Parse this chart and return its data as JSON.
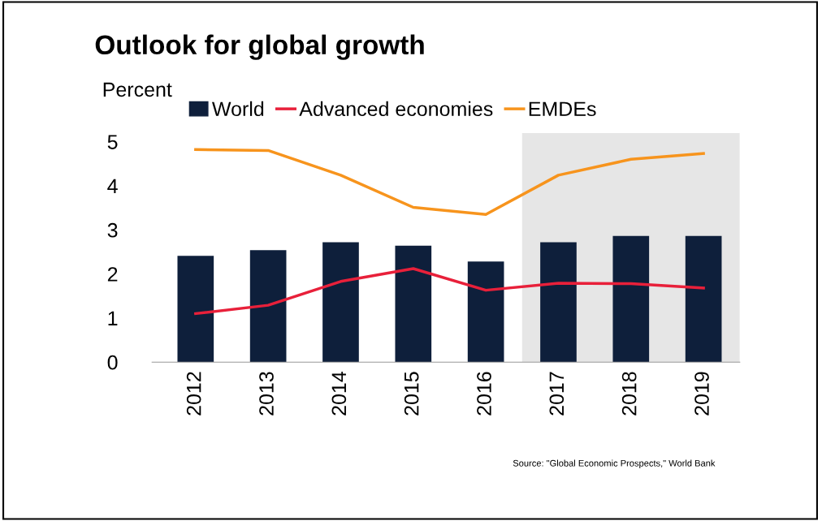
{
  "chart_data": {
    "type": "bar",
    "title": "Outlook for global growth",
    "ylabel": "Percent",
    "categories": [
      "2012",
      "2013",
      "2014",
      "2015",
      "2016",
      "2017",
      "2018",
      "2019"
    ],
    "series": [
      {
        "name": "World",
        "color": "#0e1f3b",
        "values": [
          2.41,
          2.54,
          2.72,
          2.64,
          2.28,
          2.72,
          2.86,
          2.86
        ]
      },
      {
        "name": "Advanced economies",
        "type": "line",
        "color": "#e8203a",
        "values": [
          1.1,
          1.29,
          1.83,
          2.12,
          1.63,
          1.79,
          1.78,
          1.68
        ]
      },
      {
        "name": "EMDEs",
        "type": "line",
        "color": "#f7941d",
        "values": [
          4.82,
          4.8,
          4.24,
          3.51,
          3.35,
          4.24,
          4.6,
          4.73
        ]
      }
    ],
    "ylim": [
      0,
      5.2
    ],
    "yticks": [
      0,
      1,
      2,
      3,
      4,
      5
    ],
    "grid": false,
    "legend": "top",
    "marker": "none",
    "line_style": "solid",
    "bands": [
      {
        "axis": "x",
        "from": "2017",
        "to": "2019",
        "color": "#e6e6e6"
      }
    ],
    "annotations": [
      "Source: \"Global Economic Prospects,\" World Bank"
    ]
  }
}
